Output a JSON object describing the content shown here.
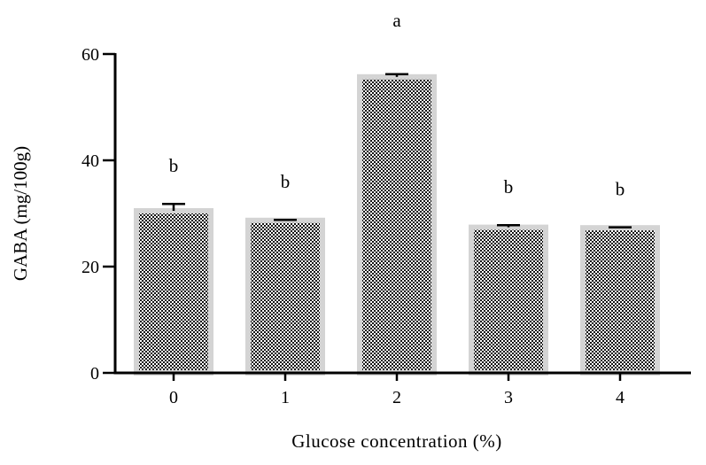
{
  "chart_data": {
    "type": "bar",
    "categories": [
      "0",
      "1",
      "2",
      "3",
      "4"
    ],
    "values": [
      30.5,
      28.7,
      55.7,
      27.4,
      27.3
    ],
    "errors": [
      1.3,
      0.1,
      0.5,
      0.4,
      0.1
    ],
    "significance": [
      "b",
      "b",
      "a",
      "b",
      "b"
    ],
    "xlabel": "Glucose concentration (%)",
    "ylabel": "GABA (mg/100g)",
    "ylim": [
      0,
      60
    ],
    "yticks": [
      0,
      20,
      40,
      60
    ],
    "grid": false,
    "bar_fill": "#1a1a1a",
    "bar_outline": "#d4d4d4",
    "axis_color": "#000000"
  }
}
